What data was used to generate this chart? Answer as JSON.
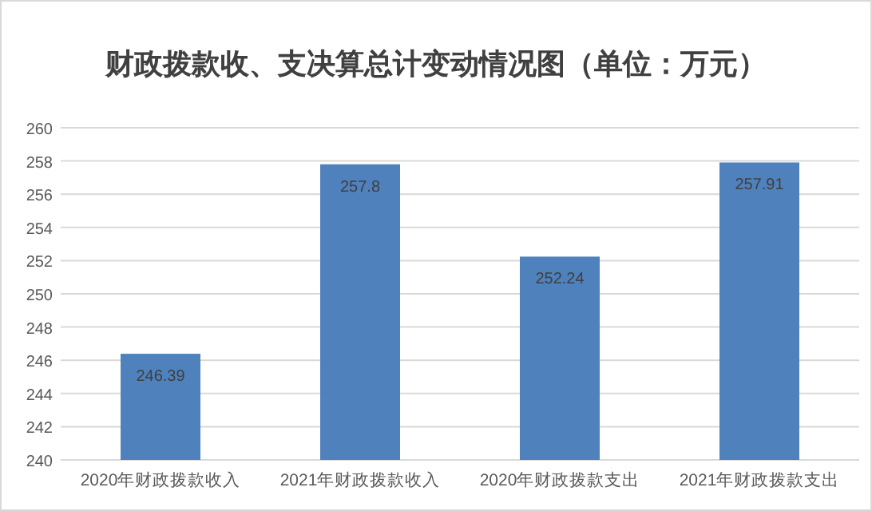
{
  "chart_data": {
    "type": "bar",
    "title": "财政拨款收、支决算总计变动情况图（单位：万元）",
    "categories": [
      "2020年财政拨款收入",
      "2021年财政拨款收入",
      "2020年财政拨款支出",
      "2021年财政拨款支出"
    ],
    "values": [
      246.39,
      257.8,
      252.24,
      257.91
    ],
    "color": "#4f81bd",
    "ylim": [
      240,
      260
    ],
    "yticks": [
      240,
      242,
      244,
      246,
      248,
      250,
      252,
      254,
      256,
      258,
      260
    ],
    "grid": "y",
    "data_labels": true
  }
}
